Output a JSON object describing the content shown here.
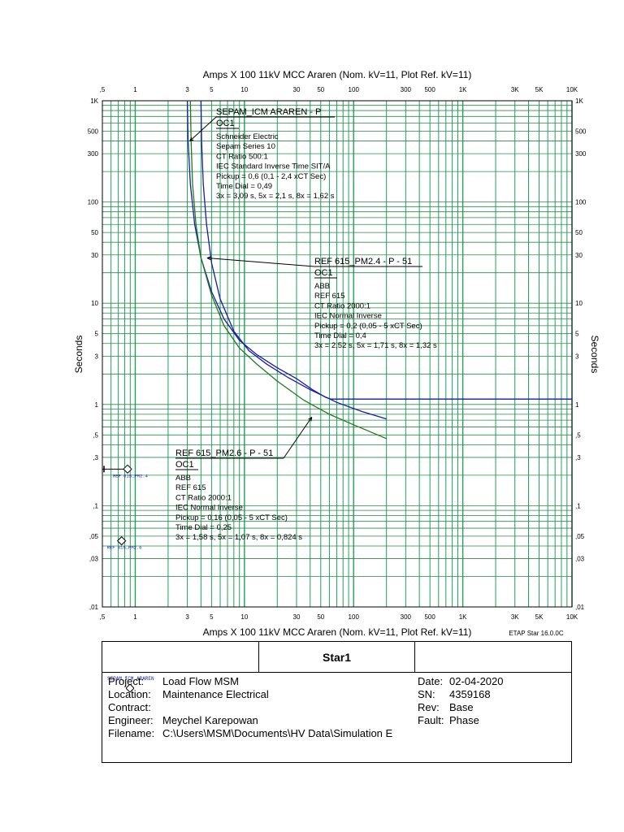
{
  "chart_data": {
    "type": "line",
    "scale": "log-log",
    "title_top": "Amps  X  100   11kV MCC Araren (Nom. kV=11, Plot Ref. kV=11)",
    "title_bottom": "Amps  X  100   11kV MCC Araren (Nom. kV=11, Plot Ref. kV=11)",
    "software": "ETAP Star 16.0.0C",
    "xlabel": "Amps X 100",
    "ylabel": "Seconds",
    "xlim": [
      0.5,
      10000
    ],
    "ylim": [
      0.01,
      1000
    ],
    "grid": true,
    "x_tick_labels": [
      {
        "v": 0.5,
        "t": ",5"
      },
      {
        "v": 1,
        "t": "1"
      },
      {
        "v": 3,
        "t": "3"
      },
      {
        "v": 5,
        "t": "5"
      },
      {
        "v": 10,
        "t": "10"
      },
      {
        "v": 30,
        "t": "30"
      },
      {
        "v": 50,
        "t": "50"
      },
      {
        "v": 100,
        "t": "100"
      },
      {
        "v": 300,
        "t": "300"
      },
      {
        "v": 500,
        "t": "500"
      },
      {
        "v": 1000,
        "t": "1K"
      },
      {
        "v": 3000,
        "t": "3K"
      },
      {
        "v": 5000,
        "t": "5K"
      },
      {
        "v": 10000,
        "t": "10K"
      }
    ],
    "y_tick_labels": [
      {
        "v": 1000,
        "t": "1K"
      },
      {
        "v": 500,
        "t": "500"
      },
      {
        "v": 300,
        "t": "300"
      },
      {
        "v": 100,
        "t": "100"
      },
      {
        "v": 50,
        "t": "50"
      },
      {
        "v": 30,
        "t": "30"
      },
      {
        "v": 10,
        "t": "10"
      },
      {
        "v": 5,
        "t": "5"
      },
      {
        "v": 3,
        "t": "3"
      },
      {
        "v": 1,
        "t": "1"
      },
      {
        "v": 0.5,
        "t": ",5"
      },
      {
        "v": 0.3,
        "t": ",3"
      },
      {
        "v": 0.1,
        "t": ",1"
      },
      {
        "v": 0.05,
        "t": ",05"
      },
      {
        "v": 0.03,
        "t": ",03"
      },
      {
        "v": 0.01,
        "t": ",01"
      }
    ],
    "series": [
      {
        "name": "SEPAM_ICM ARAREN - P OC1",
        "color": "#1a1aa6",
        "points": [
          [
            3.0,
            1000
          ],
          [
            3.05,
            400
          ],
          [
            3.2,
            150
          ],
          [
            3.5,
            60
          ],
          [
            4.0,
            28
          ],
          [
            5.0,
            13
          ],
          [
            6.5,
            7.0
          ],
          [
            9.0,
            4.3
          ],
          [
            13,
            3.1
          ],
          [
            20,
            2.3
          ],
          [
            30,
            1.8
          ],
          [
            42,
            1.4
          ],
          [
            55,
            1.18
          ],
          [
            62,
            1.13
          ],
          [
            100,
            1.13
          ],
          [
            300,
            1.13
          ],
          [
            1000,
            1.13
          ],
          [
            3000,
            1.13
          ],
          [
            10000,
            1.13
          ]
        ]
      },
      {
        "name": "REF 615_PM2.4 - P - 51 OC1",
        "color": "#1a1aa6",
        "points": [
          [
            4.0,
            1000
          ],
          [
            4.05,
            400
          ],
          [
            4.2,
            150
          ],
          [
            4.5,
            60
          ],
          [
            5.0,
            25
          ],
          [
            6.0,
            11
          ],
          [
            8.0,
            5.3
          ],
          [
            11,
            3.4
          ],
          [
            16,
            2.5
          ],
          [
            25,
            1.85
          ],
          [
            40,
            1.4
          ],
          [
            70,
            1.05
          ],
          [
            120,
            0.85
          ],
          [
            200,
            0.72
          ]
        ]
      },
      {
        "name": "REF 615_PM2.6 - P - 51 OC1",
        "color": "#1f7a1f",
        "points": [
          [
            3.2,
            1000
          ],
          [
            3.25,
            400
          ],
          [
            3.35,
            150
          ],
          [
            3.6,
            60
          ],
          [
            4.0,
            28
          ],
          [
            5.0,
            12
          ],
          [
            6.5,
            6.0
          ],
          [
            9.0,
            3.6
          ],
          [
            13,
            2.5
          ],
          [
            20,
            1.7
          ],
          [
            35,
            1.1
          ],
          [
            60,
            0.8
          ],
          [
            100,
            0.63
          ],
          [
            200,
            0.46
          ]
        ]
      }
    ],
    "annotations": [
      {
        "id": "sepam",
        "title": "SEPAM_ICM ARAREN - P",
        "subtitle": "OC1",
        "lines": [
          "Schneider Electric",
          "Sepam Series 10",
          "CT Ratio 500:1",
          "IEC Standard Inverse Time SIT/A",
          "Pickup = 0,6 (0,1 - 2,4  xCT Sec)",
          "Time Dial = 0,49",
          "3x = 3,09 s, 5x = 2,1 s, 8x = 1,62 s"
        ],
        "anchor": [
          3.05,
          400
        ]
      },
      {
        "id": "ref24",
        "title": "REF 615_PM2.4 - P - 51",
        "subtitle": "OC1",
        "lines": [
          "ABB",
          "REF 615",
          "CT Ratio 2000:1",
          "IEC Normal Inverse",
          "Pickup = 0,2 (0,05 - 5  xCT Sec)",
          "Time Dial = 0,4",
          "3x = 2,52 s, 5x = 1,71 s, 8x = 1,32 s"
        ],
        "anchor": [
          4.4,
          28
        ]
      },
      {
        "id": "ref26",
        "title": "REF 615_PM2.6 - P - 51",
        "subtitle": "OC1",
        "lines": [
          "ABB",
          "REF 615",
          "CT Ratio 2000:1",
          "IEC Normal Inverse",
          "Pickup = 0,16 (0,05 - 5  xCT Sec)",
          "Time Dial = 0,25",
          "3x = 1,58 s, 5x = 1,07 s, 8x = 0,824 s"
        ],
        "anchor": [
          40,
          0.75
        ]
      }
    ],
    "markers": [
      {
        "label": "REF 615_PM2.4",
        "pos": [
          0.85,
          0.23
        ]
      },
      {
        "label": "REF 615_PM2.6",
        "pos": [
          0.75,
          0.045
        ]
      }
    ]
  },
  "title_block": {
    "name": "Star1",
    "stamp": "SEPAM_ICM ARAREN",
    "project_label": "Project:",
    "project_value": "Load Flow MSM",
    "location_label": "Location:",
    "location_value": "Maintenance Electrical",
    "contract_label": "Contract:",
    "contract_value": "",
    "engineer_label": "Engineer:",
    "engineer_value": "Meychel Karepowan",
    "filename_label": "Filename:",
    "filename_value": "C:\\Users\\MSM\\Documents\\HV Data\\Simulation E",
    "date_label": "Date:",
    "date_value": "02-04-2020",
    "sn_label": "SN:",
    "sn_value": "4359168",
    "rev_label": "Rev:",
    "rev_value": "Base",
    "fault_label": "Fault:",
    "fault_value": "Phase"
  }
}
